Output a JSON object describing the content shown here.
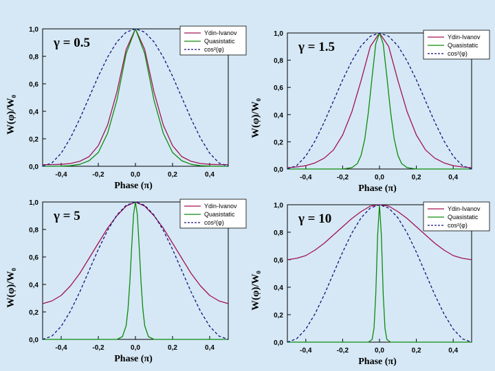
{
  "colors": {
    "background": "#d6e8f5",
    "ydin_ivanov": "#a01050",
    "quasistatic": "#0a8a0a",
    "cos2": "#101080"
  },
  "chart_data": [
    {
      "type": "line",
      "annotation": "γ = 0.5",
      "xlabel": "Phase (π)",
      "ylabel": "W(φ)/W₀",
      "xlim": [
        -0.5,
        0.5
      ],
      "ylim": [
        0.0,
        1.0
      ],
      "xticks": [
        -0.4,
        -0.2,
        0.0,
        0.2,
        0.4
      ],
      "xtick_labels": [
        "-0,4",
        "-0,2",
        "0,0",
        "0,2",
        "0,4"
      ],
      "yticks": [
        0.0,
        0.2,
        0.4,
        0.6,
        0.8,
        1.0
      ],
      "ytick_labels": [
        "0,0",
        "0,2",
        "0,4",
        "0,6",
        "0,8",
        "1,0"
      ],
      "legend_position": "top-right",
      "series": [
        {
          "name": "Ydin-Ivanov",
          "style": "solid",
          "color": "#a01050",
          "x": [
            -0.5,
            -0.45,
            -0.4,
            -0.35,
            -0.3,
            -0.25,
            -0.2,
            -0.15,
            -0.1,
            -0.05,
            0,
            0.05,
            0.1,
            0.15,
            0.2,
            0.25,
            0.3,
            0.35,
            0.4,
            0.45,
            0.5
          ],
          "y": [
            0.012,
            0.012,
            0.014,
            0.02,
            0.036,
            0.07,
            0.15,
            0.3,
            0.54,
            0.85,
            1.0,
            0.85,
            0.54,
            0.3,
            0.15,
            0.07,
            0.036,
            0.02,
            0.014,
            0.012,
            0.012
          ]
        },
        {
          "name": "Quasistatic",
          "style": "solid",
          "color": "#0a8a0a",
          "x": [
            -0.5,
            -0.45,
            -0.4,
            -0.35,
            -0.3,
            -0.25,
            -0.2,
            -0.15,
            -0.1,
            -0.05,
            0,
            0.05,
            0.1,
            0.15,
            0.2,
            0.25,
            0.3,
            0.35,
            0.4,
            0.45,
            0.5
          ],
          "y": [
            0.0,
            0.0,
            0.001,
            0.004,
            0.014,
            0.04,
            0.1,
            0.24,
            0.48,
            0.82,
            1.0,
            0.82,
            0.48,
            0.24,
            0.1,
            0.04,
            0.014,
            0.004,
            0.001,
            0.0,
            0.0
          ]
        },
        {
          "name": "cos²(φ)",
          "style": "dashed",
          "color": "#101080",
          "x": [
            -0.5,
            -0.45,
            -0.4,
            -0.35,
            -0.3,
            -0.25,
            -0.2,
            -0.15,
            -0.1,
            -0.05,
            0,
            0.05,
            0.1,
            0.15,
            0.2,
            0.25,
            0.3,
            0.35,
            0.4,
            0.45,
            0.5
          ],
          "y": [
            0.0,
            0.024,
            0.095,
            0.206,
            0.345,
            0.5,
            0.655,
            0.794,
            0.905,
            0.976,
            1.0,
            0.976,
            0.905,
            0.794,
            0.655,
            0.5,
            0.345,
            0.206,
            0.095,
            0.024,
            0.0
          ]
        }
      ]
    },
    {
      "type": "line",
      "annotation": "γ = 1.5",
      "xlabel": "Phase (π)",
      "ylabel": "W(φ)/W₀",
      "xlim": [
        -0.5,
        0.5
      ],
      "ylim": [
        0.0,
        1.0
      ],
      "xticks": [
        -0.4,
        -0.2,
        0.0,
        0.2,
        0.4
      ],
      "xtick_labels": [
        "-0,4",
        "-0,2",
        "0,0",
        "0,2",
        "0,4"
      ],
      "yticks": [
        0.0,
        0.2,
        0.4,
        0.6,
        0.8,
        1.0
      ],
      "ytick_labels": [
        "0,0",
        "0,2",
        "0,4",
        "0,6",
        "0,8",
        "1,0"
      ],
      "legend_position": "top-right",
      "series": [
        {
          "name": "Ydin-Ivanov",
          "style": "solid",
          "color": "#a01050",
          "x": [
            -0.5,
            -0.45,
            -0.4,
            -0.35,
            -0.3,
            -0.25,
            -0.2,
            -0.15,
            -0.1,
            -0.05,
            0,
            0.05,
            0.1,
            0.15,
            0.2,
            0.25,
            0.3,
            0.35,
            0.4,
            0.45,
            0.5
          ],
          "y": [
            0.01,
            0.015,
            0.025,
            0.045,
            0.08,
            0.14,
            0.25,
            0.42,
            0.65,
            0.9,
            1.0,
            0.9,
            0.65,
            0.42,
            0.25,
            0.14,
            0.08,
            0.045,
            0.025,
            0.015,
            0.01
          ]
        },
        {
          "name": "Quasistatic",
          "style": "solid",
          "color": "#0a8a0a",
          "x": [
            -0.5,
            -0.2,
            -0.15,
            -0.12,
            -0.1,
            -0.08,
            -0.06,
            -0.04,
            -0.02,
            0,
            0.02,
            0.04,
            0.06,
            0.08,
            0.1,
            0.12,
            0.15,
            0.2,
            0.5
          ],
          "y": [
            0.0,
            0.0,
            0.01,
            0.04,
            0.1,
            0.22,
            0.42,
            0.68,
            0.92,
            1.0,
            0.92,
            0.68,
            0.42,
            0.22,
            0.1,
            0.04,
            0.01,
            0.0,
            0.0
          ]
        },
        {
          "name": "cos²(φ)",
          "style": "dashed",
          "color": "#101080",
          "x": [
            -0.5,
            -0.45,
            -0.4,
            -0.35,
            -0.3,
            -0.25,
            -0.2,
            -0.15,
            -0.1,
            -0.05,
            0,
            0.05,
            0.1,
            0.15,
            0.2,
            0.25,
            0.3,
            0.35,
            0.4,
            0.45,
            0.5
          ],
          "y": [
            0.0,
            0.024,
            0.095,
            0.206,
            0.345,
            0.5,
            0.655,
            0.794,
            0.905,
            0.976,
            1.0,
            0.976,
            0.905,
            0.794,
            0.655,
            0.5,
            0.345,
            0.206,
            0.095,
            0.024,
            0.0
          ]
        }
      ]
    },
    {
      "type": "line",
      "annotation": "γ = 5",
      "xlabel": "Phase (π)",
      "ylabel": "W(φ)/W₀",
      "xlim": [
        -0.5,
        0.5
      ],
      "ylim": [
        0.0,
        1.0
      ],
      "xticks": [
        -0.4,
        -0.2,
        0.0,
        0.2,
        0.4
      ],
      "xtick_labels": [
        "-0,4",
        "-0,2",
        "0,0",
        "0,2",
        "0,4"
      ],
      "yticks": [
        0.0,
        0.2,
        0.4,
        0.6,
        0.8,
        1.0
      ],
      "ytick_labels": [
        "0,0",
        "0,2",
        "0,4",
        "0,6",
        "0,8",
        "1,0"
      ],
      "legend_position": "top-right",
      "series": [
        {
          "name": "Ydin-Ivanov",
          "style": "solid",
          "color": "#a01050",
          "x": [
            -0.5,
            -0.45,
            -0.4,
            -0.35,
            -0.3,
            -0.25,
            -0.2,
            -0.15,
            -0.1,
            -0.05,
            0,
            0.05,
            0.1,
            0.15,
            0.2,
            0.25,
            0.3,
            0.35,
            0.4,
            0.45,
            0.5
          ],
          "y": [
            0.26,
            0.28,
            0.32,
            0.39,
            0.48,
            0.59,
            0.7,
            0.81,
            0.9,
            0.97,
            1.0,
            0.97,
            0.9,
            0.81,
            0.7,
            0.59,
            0.48,
            0.39,
            0.32,
            0.28,
            0.26
          ]
        },
        {
          "name": "Quasistatic",
          "style": "solid",
          "color": "#0a8a0a",
          "x": [
            -0.5,
            -0.1,
            -0.07,
            -0.05,
            -0.04,
            -0.03,
            -0.02,
            -0.01,
            0,
            0.01,
            0.02,
            0.03,
            0.04,
            0.05,
            0.07,
            0.1,
            0.5
          ],
          "y": [
            0.0,
            0.0,
            0.02,
            0.1,
            0.22,
            0.42,
            0.68,
            0.91,
            1.0,
            0.91,
            0.68,
            0.42,
            0.22,
            0.1,
            0.02,
            0.0,
            0.0
          ]
        },
        {
          "name": "cos²(φ)",
          "style": "dashed",
          "color": "#101080",
          "x": [
            -0.5,
            -0.45,
            -0.4,
            -0.35,
            -0.3,
            -0.25,
            -0.2,
            -0.15,
            -0.1,
            -0.05,
            0,
            0.05,
            0.1,
            0.15,
            0.2,
            0.25,
            0.3,
            0.35,
            0.4,
            0.45,
            0.5
          ],
          "y": [
            0.0,
            0.024,
            0.095,
            0.206,
            0.345,
            0.5,
            0.655,
            0.794,
            0.905,
            0.976,
            1.0,
            0.976,
            0.905,
            0.794,
            0.655,
            0.5,
            0.345,
            0.206,
            0.095,
            0.024,
            0.0
          ]
        }
      ]
    },
    {
      "type": "line",
      "annotation": "γ = 10",
      "xlabel": "Phase (π)",
      "ylabel": "W(φ)/W₀",
      "xlim": [
        -0.5,
        0.5
      ],
      "ylim": [
        0.0,
        1.0
      ],
      "xticks": [
        -0.4,
        -0.2,
        0.0,
        0.2,
        0.4
      ],
      "xtick_labels": [
        "-0,4",
        "-0,2",
        "0,0",
        "0,2",
        "0,4"
      ],
      "yticks": [
        0.0,
        0.2,
        0.4,
        0.6,
        0.8,
        1.0
      ],
      "ytick_labels": [
        "0,0",
        "0,2",
        "0,4",
        "0,6",
        "0,8",
        "1,0"
      ],
      "legend_position": "top-right",
      "series": [
        {
          "name": "Ydin-Ivanov",
          "style": "solid",
          "color": "#a01050",
          "x": [
            -0.5,
            -0.45,
            -0.4,
            -0.35,
            -0.3,
            -0.25,
            -0.2,
            -0.15,
            -0.1,
            -0.05,
            0,
            0.05,
            0.1,
            0.15,
            0.2,
            0.25,
            0.3,
            0.35,
            0.4,
            0.45,
            0.5
          ],
          "y": [
            0.6,
            0.61,
            0.63,
            0.67,
            0.72,
            0.78,
            0.84,
            0.9,
            0.95,
            0.99,
            1.0,
            0.99,
            0.95,
            0.9,
            0.84,
            0.78,
            0.72,
            0.67,
            0.63,
            0.61,
            0.6
          ]
        },
        {
          "name": "Quasistatic",
          "style": "solid",
          "color": "#0a8a0a",
          "x": [
            -0.5,
            -0.06,
            -0.04,
            -0.03,
            -0.02,
            -0.01,
            0,
            0.01,
            0.02,
            0.03,
            0.04,
            0.06,
            0.5
          ],
          "y": [
            0.0,
            0.0,
            0.02,
            0.1,
            0.35,
            0.78,
            1.0,
            0.78,
            0.35,
            0.1,
            0.02,
            0.0,
            0.0
          ]
        },
        {
          "name": "cos²(φ)",
          "style": "dashed",
          "color": "#101080",
          "x": [
            -0.5,
            -0.45,
            -0.4,
            -0.35,
            -0.3,
            -0.25,
            -0.2,
            -0.15,
            -0.1,
            -0.05,
            0,
            0.05,
            0.1,
            0.15,
            0.2,
            0.25,
            0.3,
            0.35,
            0.4,
            0.45,
            0.5
          ],
          "y": [
            0.0,
            0.024,
            0.095,
            0.206,
            0.345,
            0.5,
            0.655,
            0.794,
            0.905,
            0.976,
            1.0,
            0.976,
            0.905,
            0.794,
            0.655,
            0.5,
            0.345,
            0.206,
            0.095,
            0.024,
            0.0
          ]
        }
      ]
    }
  ]
}
